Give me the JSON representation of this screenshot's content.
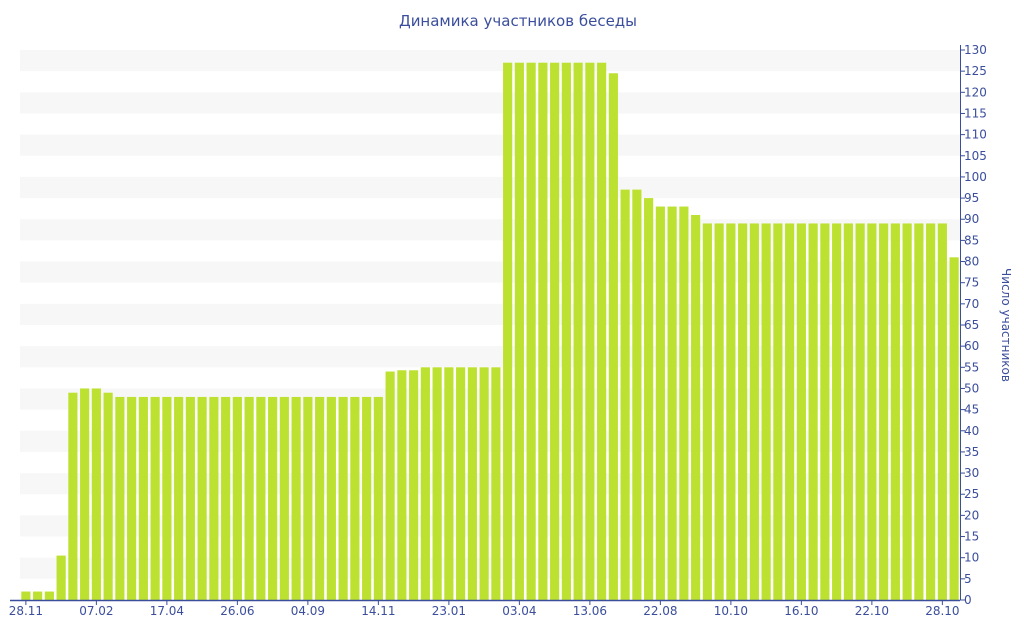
{
  "chart_data": {
    "type": "bar",
    "title": "Динамика участников беседы",
    "xlabel": "",
    "ylabel": "Число участников",
    "ylim": [
      0,
      130
    ],
    "ytick_step": 5,
    "y_axis_side": "right",
    "grid": "alternating horizontal bands",
    "bar_color": "#bde131",
    "axis_color": "#3b4e9c",
    "values": [
      2,
      2,
      2,
      10.5,
      49,
      50,
      50,
      49,
      48,
      48,
      48,
      48,
      48,
      48,
      48,
      48,
      48,
      48,
      48,
      48,
      48,
      48,
      48,
      48,
      48,
      48,
      48,
      48,
      48,
      48,
      48,
      54,
      54.3,
      54.3,
      55,
      55,
      55,
      55,
      55,
      55,
      55,
      127,
      127,
      127,
      127,
      127,
      127,
      127,
      127,
      127,
      124.5,
      97,
      97,
      95,
      93,
      93,
      93,
      91,
      89,
      89,
      89,
      89,
      89,
      89,
      89,
      89,
      89,
      89,
      89,
      89,
      89,
      89,
      89,
      89,
      89,
      89,
      89,
      89,
      89,
      81
    ],
    "x_tick_labels": [
      {
        "index": 0,
        "label": "28.11"
      },
      {
        "index": 6,
        "label": "07.02"
      },
      {
        "index": 12,
        "label": "17.04"
      },
      {
        "index": 18,
        "label": "26.06"
      },
      {
        "index": 24,
        "label": "04.09"
      },
      {
        "index": 30,
        "label": "14.11"
      },
      {
        "index": 36,
        "label": "23.01"
      },
      {
        "index": 42,
        "label": "03.04"
      },
      {
        "index": 48,
        "label": "13.06"
      },
      {
        "index": 54,
        "label": "22.08"
      },
      {
        "index": 60,
        "label": "10.10"
      },
      {
        "index": 66,
        "label": "16.10"
      },
      {
        "index": 72,
        "label": "22.10"
      },
      {
        "index": 78,
        "label": "28.10"
      }
    ]
  }
}
